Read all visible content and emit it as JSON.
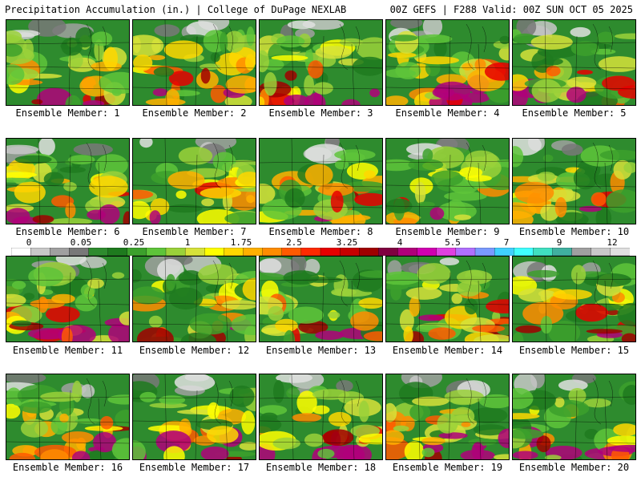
{
  "header": {
    "title_left": "Precipitation Accumulation (in.) | College of DuPage NEXLAB",
    "title_right": "00Z GEFS | F288 Valid: 00Z SUN OCT 05 2025"
  },
  "colorbar": {
    "labels": [
      "0",
      "0.05",
      "0.25",
      "1",
      "1.75",
      "2.5",
      "3.25",
      "4",
      "5.5",
      "7",
      "9",
      "12"
    ],
    "colors": [
      "#ffffff",
      "#c8c8c8",
      "#a0a0a0",
      "#787878",
      "#2e8b2e",
      "#1e7a1e",
      "#3ca02c",
      "#5ec43a",
      "#9ad13a",
      "#d6e23a",
      "#ffff00",
      "#ffd700",
      "#ffb000",
      "#ff8c00",
      "#ff5a00",
      "#ff2a00",
      "#e60000",
      "#c80000",
      "#a00000",
      "#800040",
      "#b0007a",
      "#d000b0",
      "#e040e0",
      "#b070ff",
      "#7a9aff",
      "#40d0ff",
      "#40ffff",
      "#40e0c0",
      "#40b0a0",
      "#a0a0a0",
      "#c8c8c8",
      "#e0e0e0"
    ]
  },
  "panels": [
    {
      "label": "Ensemble Member: 1"
    },
    {
      "label": "Ensemble Member: 2"
    },
    {
      "label": "Ensemble Member: 3"
    },
    {
      "label": "Ensemble Member: 4"
    },
    {
      "label": "Ensemble Member: 5"
    },
    {
      "label": "Ensemble Member: 6"
    },
    {
      "label": "Ensemble Member: 7"
    },
    {
      "label": "Ensemble Member: 8"
    },
    {
      "label": "Ensemble Member: 9"
    },
    {
      "label": "Ensemble Member: 10"
    },
    {
      "label": "Ensemble Member: 11"
    },
    {
      "label": "Ensemble Member: 12"
    },
    {
      "label": "Ensemble Member: 13"
    },
    {
      "label": "Ensemble Member: 14"
    },
    {
      "label": "Ensemble Member: 15"
    },
    {
      "label": "Ensemble Member: 16"
    },
    {
      "label": "Ensemble Member: 17"
    },
    {
      "label": "Ensemble Member: 18"
    },
    {
      "label": "Ensemble Member: 19"
    },
    {
      "label": "Ensemble Member: 20"
    }
  ]
}
